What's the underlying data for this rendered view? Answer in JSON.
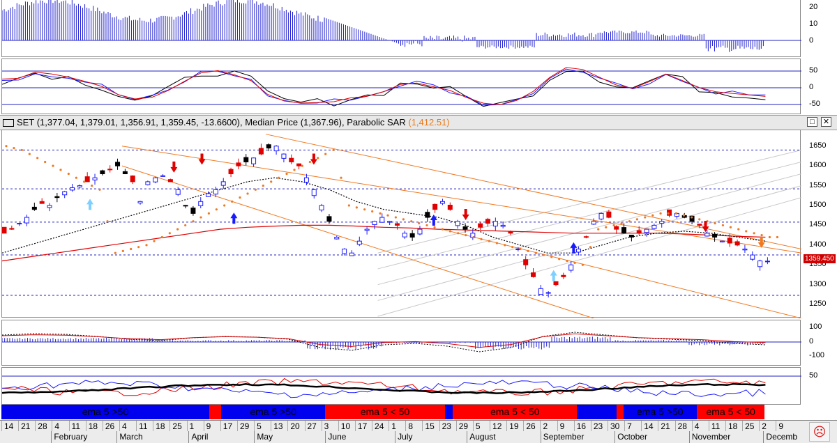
{
  "colors": {
    "up": "#1a1aff",
    "down": "#e00000",
    "black": "#000000",
    "sar": "#f07820",
    "ema_long": "#e00000",
    "ema_mid": "#000000",
    "ema_short": "#2aa02a",
    "grid": "#2020c0",
    "channel": "#f07820",
    "gray_channel": "#c8c8c8",
    "seg_blue": "#0000ee",
    "seg_red": "#ff0000"
  },
  "title": {
    "symbol": "SET",
    "ohlc": "(1,377.04, 1,379.01, 1,356.91, 1,359.45, -13.6600),",
    "median": "Median Price (1,367.96),",
    "sar_label": "Parabolic SAR",
    "sar_value": "(1,412.51)"
  },
  "window_buttons": {
    "maximize": "□",
    "close": "✕"
  },
  "last_price": "1359.450",
  "axes": {
    "top": [
      "20",
      "10",
      "0"
    ],
    "osc": [
      "50",
      "0",
      "-50"
    ],
    "main": [
      "1650",
      "1600",
      "1550",
      "1500",
      "1450",
      "1400",
      "1350",
      "1300",
      "1250"
    ],
    "macd": [
      "100",
      "0",
      "-100"
    ],
    "rsi": [
      "50"
    ]
  },
  "ema_segments": [
    {
      "label": "ema 5 >50",
      "color": "blue",
      "start": 0.0,
      "end": 0.26
    },
    {
      "label": "",
      "color": "red",
      "start": 0.26,
      "end": 0.275
    },
    {
      "label": "ema 5 >50",
      "color": "blue",
      "start": 0.275,
      "end": 0.405
    },
    {
      "label": "",
      "color": "red",
      "start": 0.405,
      "end": 0.555
    },
    {
      "label": "",
      "color": "blue",
      "start": 0.555,
      "end": 0.565
    },
    {
      "label": "ema 5 < 50",
      "color": "red",
      "start": 0.565,
      "end": 0.72
    },
    {
      "label": "",
      "color": "blue",
      "start": 0.72,
      "end": 0.77
    },
    {
      "label": "",
      "color": "red",
      "start": 0.77,
      "end": 0.778
    },
    {
      "label": "ema 5 >50",
      "color": "blue",
      "start": 0.778,
      "end": 0.87
    },
    {
      "label": "ema 5 < 50",
      "color": "red",
      "start": 0.87,
      "end": 0.955
    }
  ],
  "ema_labels_extra": [
    "ema 5 < 50"
  ],
  "dates": [
    "14",
    "21",
    "28",
    "4",
    "11",
    "18",
    "26",
    "4",
    "11",
    "18",
    "25",
    "1",
    "9",
    "17",
    "29",
    "5",
    "13",
    "20",
    "27",
    "3",
    "10",
    "17",
    "24",
    "1",
    "8",
    "15",
    "23",
    "29",
    "5",
    "12",
    "19",
    "26",
    "2",
    "9",
    "16",
    "23",
    "30",
    "7",
    "14",
    "21",
    "28",
    "4",
    "11",
    "18",
    "25",
    "2",
    "9"
  ],
  "months": [
    {
      "label": "February",
      "pos": 0.064
    },
    {
      "label": "March",
      "pos": 0.146
    },
    {
      "label": "April",
      "pos": 0.236
    },
    {
      "label": "May",
      "pos": 0.318
    },
    {
      "label": "June",
      "pos": 0.407
    },
    {
      "label": "July",
      "pos": 0.494
    },
    {
      "label": "August",
      "pos": 0.584
    },
    {
      "label": "September",
      "pos": 0.676
    },
    {
      "label": "October",
      "pos": 0.769
    },
    {
      "label": "November",
      "pos": 0.862
    },
    {
      "label": "Decemb",
      "pos": 0.955
    }
  ],
  "chart_data": {
    "type": "line",
    "title": "SET (1,377.04, 1,379.01, 1,356.91, 1,359.45, -13.6600), Median Price (1,367.96), Parabolic SAR (1,412.51)",
    "ylim": [
      1215,
      1690
    ],
    "price_series": [
      1430,
      1440,
      1455,
      1470,
      1490,
      1505,
      1500,
      1520,
      1535,
      1545,
      1550,
      1560,
      1570,
      1580,
      1590,
      1600,
      1580,
      1560,
      1510,
      1560,
      1570,
      1575,
      1560,
      1540,
      1500,
      1480,
      1510,
      1530,
      1540,
      1560,
      1580,
      1600,
      1610,
      1620,
      1630,
      1645,
      1650,
      1630,
      1610,
      1600,
      1570,
      1540,
      1500,
      1460,
      1420,
      1390,
      1380,
      1410,
      1440,
      1460,
      1470,
      1460,
      1450,
      1430,
      1420,
      1440,
      1470,
      1490,
      1510,
      1490,
      1460,
      1440,
      1430,
      1445,
      1455,
      1460,
      1450,
      1430,
      1390,
      1350,
      1320,
      1290,
      1280,
      1300,
      1320,
      1350,
      1390,
      1420,
      1460,
      1480,
      1470,
      1440,
      1430,
      1420,
      1430,
      1440,
      1450,
      1460,
      1475,
      1480,
      1470,
      1460,
      1450,
      1430,
      1420,
      1410,
      1405,
      1400,
      1390,
      1375,
      1360,
      1359.45
    ],
    "sar_points": [
      1650,
      1640,
      1620,
      1600,
      1580,
      1560,
      1540,
      1380,
      1390,
      1400,
      1420,
      1440,
      1460,
      1480,
      1500,
      1520,
      1540,
      1560,
      1580,
      1600,
      1620,
      1640,
      1500,
      1490,
      1480,
      1470,
      1460,
      1450,
      1440,
      1430,
      1420,
      1410,
      1400,
      1390,
      1380,
      1370,
      1360,
      1350,
      1440,
      1450,
      1460,
      1470,
      1480,
      1480,
      1470,
      1460,
      1450,
      1440,
      1430,
      1420
    ],
    "ema_long": [
      1360,
      1370,
      1380,
      1390,
      1400,
      1410,
      1420,
      1430,
      1440,
      1445,
      1448,
      1450,
      1450,
      1448,
      1445,
      1443,
      1440,
      1438,
      1436,
      1434,
      1432,
      1430,
      1430,
      1430,
      1430,
      1428,
      1425,
      1422,
      1420
    ],
    "ema_mid": [
      1380,
      1400,
      1420,
      1440,
      1460,
      1480,
      1500,
      1520,
      1540,
      1560,
      1570,
      1560,
      1540,
      1510,
      1490,
      1480,
      1470,
      1450,
      1420,
      1400,
      1380,
      1380,
      1400,
      1420,
      1430,
      1435,
      1430,
      1420,
      1410
    ],
    "channel_upper": [
      [
        0.15,
        1650
      ],
      [
        1.0,
        1380
      ]
    ],
    "channel_lower": [
      [
        0.15,
        1600
      ],
      [
        0.74,
        1215
      ]
    ],
    "channel2_upper": [
      [
        0.33,
        1680
      ],
      [
        1.0,
        1390
      ]
    ],
    "channel2_lower": [
      [
        0.55,
        1440
      ],
      [
        1.0,
        1215
      ]
    ],
    "hlines": [
      1640,
      1542,
      1458,
      1375,
      1273
    ]
  }
}
